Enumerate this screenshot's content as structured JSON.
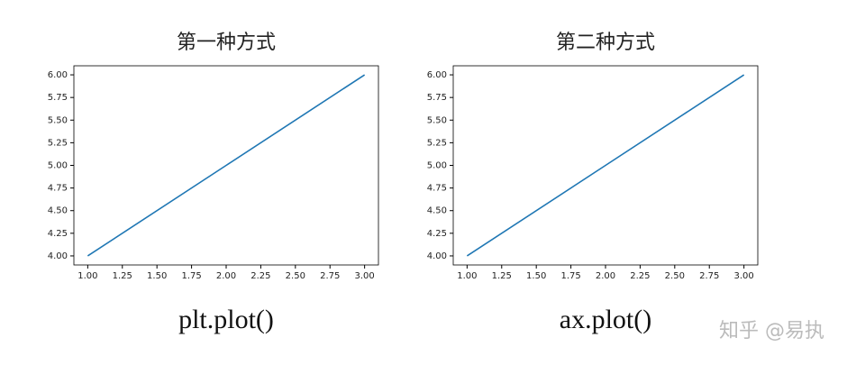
{
  "chart_data": [
    {
      "type": "line",
      "title": "第一种方式",
      "caption": "plt.plot()",
      "x": [
        1,
        2,
        3
      ],
      "series": [
        {
          "color": "#1f77b4",
          "values": [
            4,
            5,
            6
          ]
        }
      ],
      "xlim": [
        0.9,
        3.1
      ],
      "ylim": [
        3.9,
        6.1
      ],
      "xticks": [
        {
          "value": 1,
          "label": "1.00"
        },
        {
          "value": 1.25,
          "label": "1.25"
        },
        {
          "value": 1.5,
          "label": "1.50"
        },
        {
          "value": 1.75,
          "label": "1.75"
        },
        {
          "value": 2,
          "label": "2.00"
        },
        {
          "value": 2.25,
          "label": "2.25"
        },
        {
          "value": 2.5,
          "label": "2.50"
        },
        {
          "value": 2.75,
          "label": "2.75"
        },
        {
          "value": 3,
          "label": "3.00"
        }
      ],
      "yticks": [
        {
          "value": 4,
          "label": "4.00"
        },
        {
          "value": 4.25,
          "label": "4.25"
        },
        {
          "value": 4.5,
          "label": "4.50"
        },
        {
          "value": 4.75,
          "label": "4.75"
        },
        {
          "value": 5,
          "label": "5.00"
        },
        {
          "value": 5.25,
          "label": "5.25"
        },
        {
          "value": 5.5,
          "label": "5.50"
        },
        {
          "value": 5.75,
          "label": "5.75"
        },
        {
          "value": 6,
          "label": "6.00"
        }
      ]
    },
    {
      "type": "line",
      "title": "第二种方式",
      "caption": "ax.plot()",
      "x": [
        1,
        2,
        3
      ],
      "series": [
        {
          "color": "#1f77b4",
          "values": [
            4,
            5,
            6
          ]
        }
      ],
      "xlim": [
        0.9,
        3.1
      ],
      "ylim": [
        3.9,
        6.1
      ],
      "xticks": [
        {
          "value": 1,
          "label": "1.00"
        },
        {
          "value": 1.25,
          "label": "1.25"
        },
        {
          "value": 1.5,
          "label": "1.50"
        },
        {
          "value": 1.75,
          "label": "1.75"
        },
        {
          "value": 2,
          "label": "2.00"
        },
        {
          "value": 2.25,
          "label": "2.25"
        },
        {
          "value": 2.5,
          "label": "2.50"
        },
        {
          "value": 2.75,
          "label": "2.75"
        },
        {
          "value": 3,
          "label": "3.00"
        }
      ],
      "yticks": [
        {
          "value": 4,
          "label": "4.00"
        },
        {
          "value": 4.25,
          "label": "4.25"
        },
        {
          "value": 4.5,
          "label": "4.50"
        },
        {
          "value": 4.75,
          "label": "4.75"
        },
        {
          "value": 5,
          "label": "5.00"
        },
        {
          "value": 5.25,
          "label": "5.25"
        },
        {
          "value": 5.5,
          "label": "5.50"
        },
        {
          "value": 5.75,
          "label": "5.75"
        },
        {
          "value": 6,
          "label": "6.00"
        }
      ]
    }
  ],
  "watermark": "知乎 @易执"
}
